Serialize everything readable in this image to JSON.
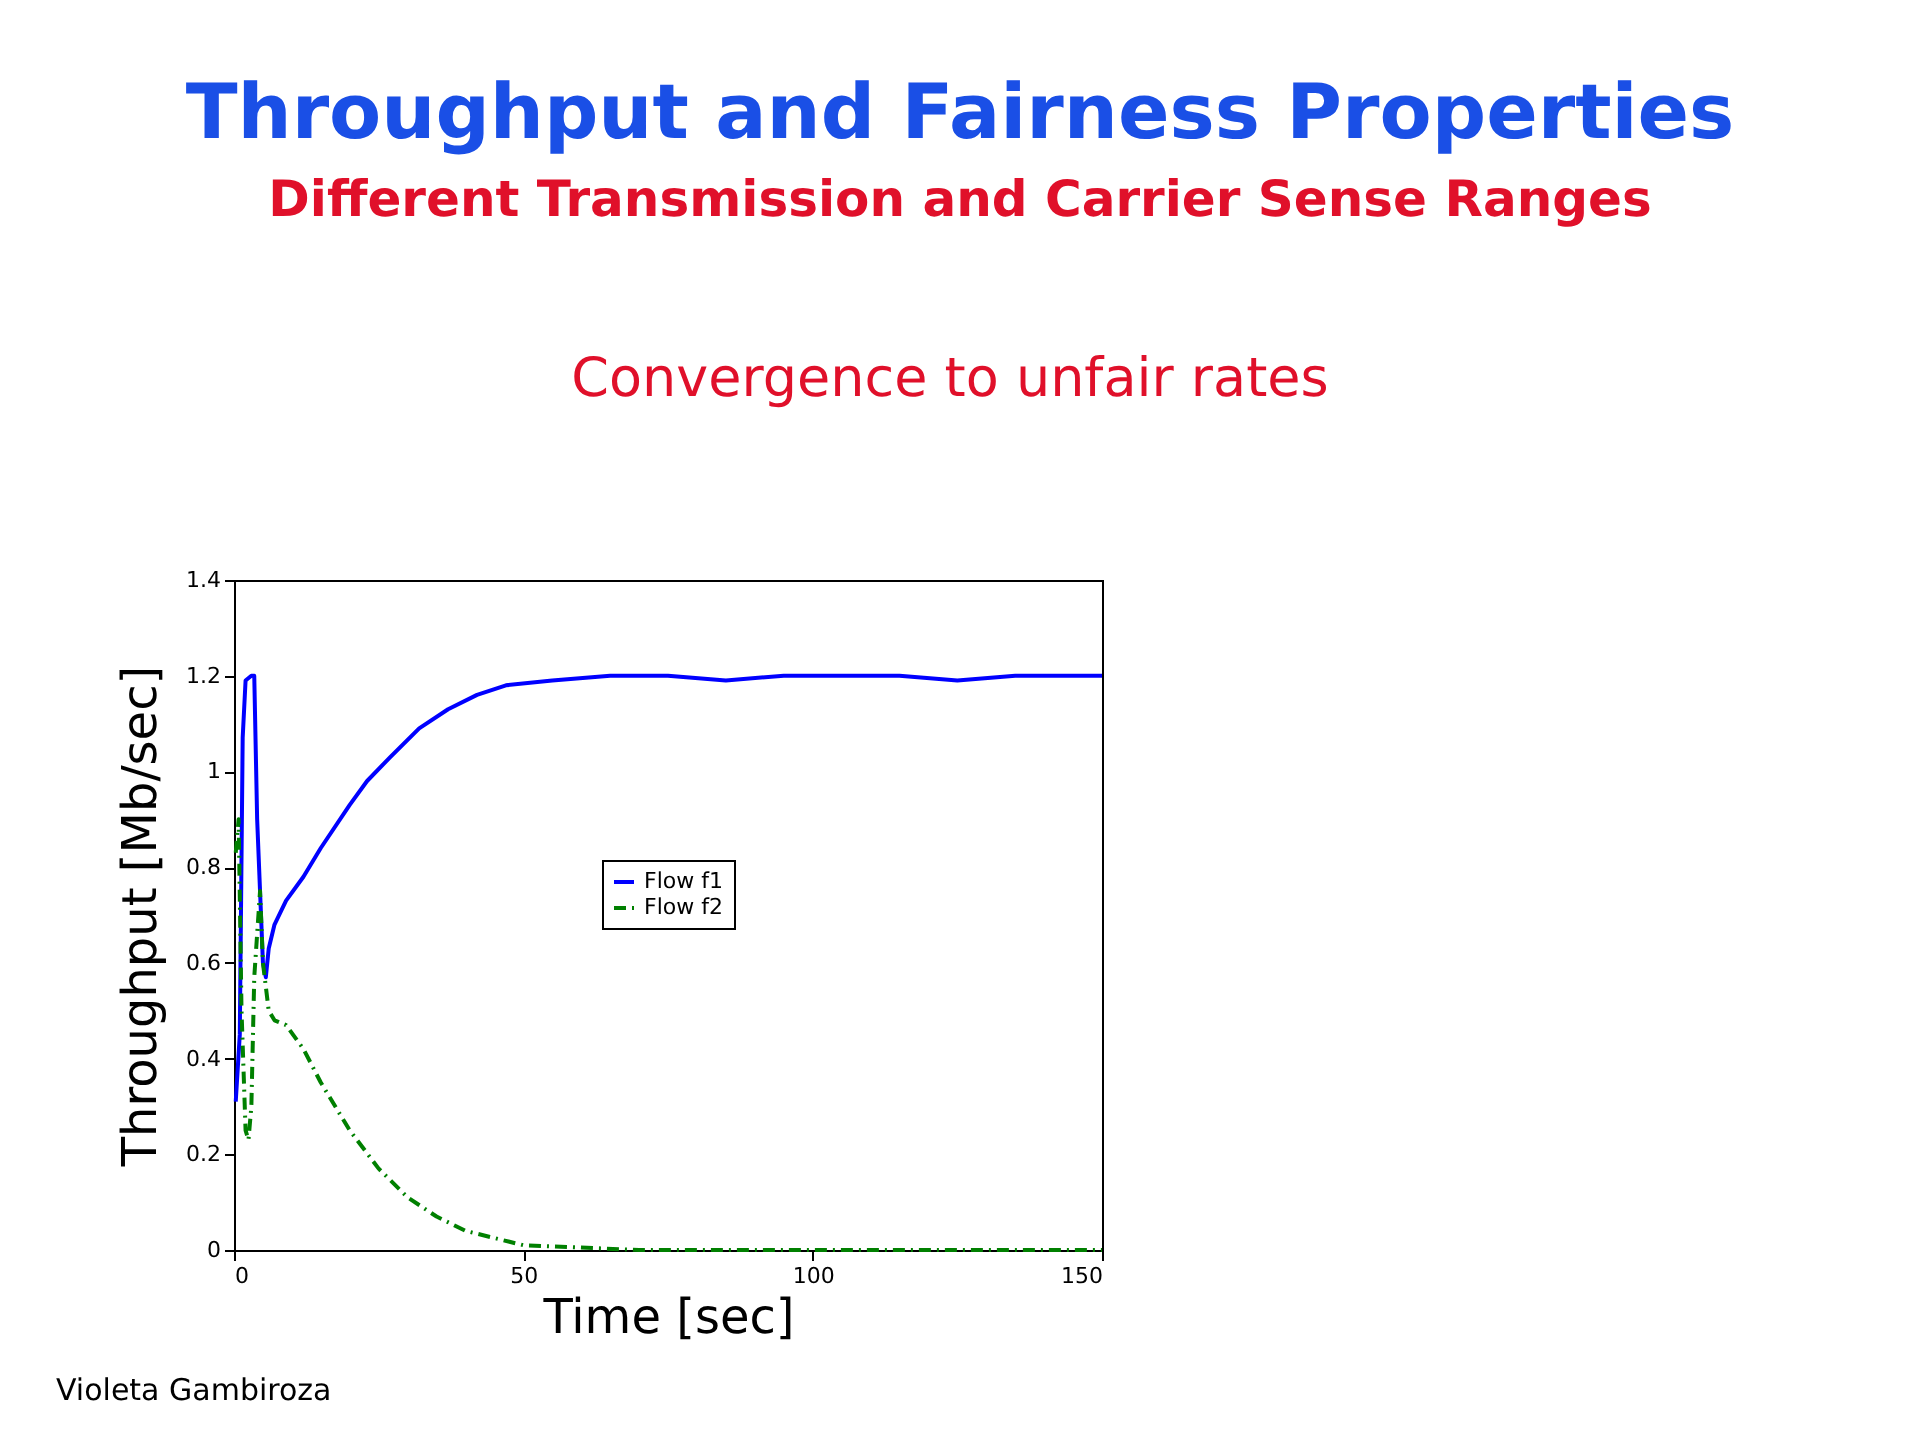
{
  "chart_data": {
    "type": "line",
    "title": "Throughput and Fairness Properties",
    "subtitle": "Different Transmission and Carrier Sense Ranges",
    "xlabel": "Time [sec]",
    "ylabel": "Throughput [Mb/sec]",
    "annotations": [
      "Convergence to unfair rates",
      "Violeta Gambiroza"
    ],
    "xlim": [
      0,
      150
    ],
    "xticks": [
      0,
      50,
      100,
      150
    ],
    "ylim": [
      0,
      1.4
    ],
    "yticks": [
      0,
      0.2,
      0.4,
      0.6,
      0.8,
      1,
      1.2,
      1.4
    ],
    "grid": false,
    "legend": "right",
    "marker": "none",
    "series": [
      {
        "name": "Flow f1",
        "color": "#0000ff",
        "line_style": "solid",
        "x": [
          0.3,
          1,
          1.5,
          2,
          3,
          3.5,
          4,
          4.5,
          5,
          5.5,
          6,
          7,
          9,
          12,
          15,
          20,
          23,
          27,
          32,
          37,
          42,
          47,
          55,
          65,
          75,
          85,
          95,
          105,
          115,
          125,
          135,
          145,
          150
        ],
        "values": [
          0.31,
          0.45,
          1.07,
          1.19,
          1.2,
          1.2,
          0.9,
          0.75,
          0.6,
          0.57,
          0.63,
          0.68,
          0.73,
          0.78,
          0.84,
          0.93,
          0.98,
          1.03,
          1.09,
          1.13,
          1.16,
          1.18,
          1.19,
          1.2,
          1.2,
          1.19,
          1.2,
          1.2,
          1.2,
          1.19,
          1.2,
          1.2,
          1.2
        ]
      },
      {
        "name": "Flow f2",
        "color": "#008000",
        "line_style": "dashdot",
        "x": [
          0.3,
          0.8,
          1.3,
          2,
          2.5,
          3,
          3.5,
          4.5,
          5,
          6,
          7,
          9,
          12,
          15,
          20,
          25,
          30,
          35,
          40,
          45,
          50,
          60,
          70,
          90,
          110,
          130,
          150
        ],
        "values": [
          0.83,
          0.9,
          0.5,
          0.25,
          0.23,
          0.3,
          0.57,
          0.75,
          0.6,
          0.5,
          0.48,
          0.47,
          0.42,
          0.35,
          0.25,
          0.17,
          0.11,
          0.07,
          0.04,
          0.025,
          0.01,
          0.005,
          0,
          0,
          0,
          0,
          0
        ]
      }
    ]
  }
}
